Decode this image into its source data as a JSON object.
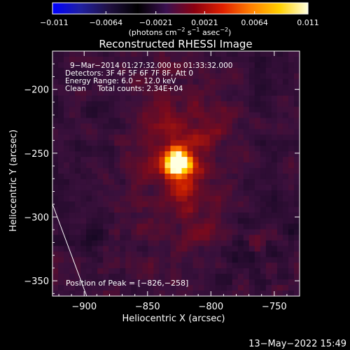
{
  "chart_data": {
    "type": "heatmap",
    "title": "Reconstructed RHESSI Image",
    "xlabel": "Heliocentric X (arcsec)",
    "ylabel": "Heliocentric Y (arcsec)",
    "xlim": [
      -925,
      -730
    ],
    "ylim": [
      -362,
      -170
    ],
    "x_ticks": [
      {
        "value": -900,
        "label": "−900"
      },
      {
        "value": -850,
        "label": "−850"
      },
      {
        "value": -800,
        "label": "−800"
      },
      {
        "value": -750,
        "label": "−750"
      }
    ],
    "y_ticks": [
      {
        "value": -200,
        "label": "−200"
      },
      {
        "value": -250,
        "label": "−250"
      },
      {
        "value": -300,
        "label": "−300"
      },
      {
        "value": -350,
        "label": "−350"
      }
    ],
    "colorbar": {
      "range": [
        -0.011,
        0.011
      ],
      "tick_values": [
        -0.011,
        -0.0064,
        -0.0021,
        0.0021,
        0.0064,
        0.011
      ],
      "tick_labels": [
        "−0.011",
        "−0.0064",
        "−0.0021",
        "0.0021",
        "0.0064",
        "0.011"
      ],
      "unit_main": "(photons cm",
      "unit_sup1": "−2",
      "unit_mid": " s",
      "unit_sup2": "−1",
      "unit_mid2": " asec",
      "unit_sup3": "−2",
      "unit_end": ")",
      "colors": [
        "#0000ff",
        "#2020a0",
        "#201040",
        "#000000",
        "#3a1050",
        "#8a0010",
        "#e02000",
        "#ff8000",
        "#ffd000",
        "#ffffe0"
      ]
    },
    "annotations": [
      "9−Mar−2014 01:27:32.000 to 01:33:32.000",
      "Detectors: 3F 4F 5F 6F 7F 8F, Att 0",
      "Energy Range: 6.0 − 12.0 keV",
      "Clean     Total counts: 2.34E+04"
    ],
    "peak": {
      "x": -826,
      "y": -258,
      "label": "Position of Peak = [−826,−258]"
    },
    "limb_line": [
      {
        "x": -925,
        "y": -290
      },
      {
        "x": -898,
        "y": -362
      }
    ],
    "timestamp": "13−May−2022 15:49"
  }
}
